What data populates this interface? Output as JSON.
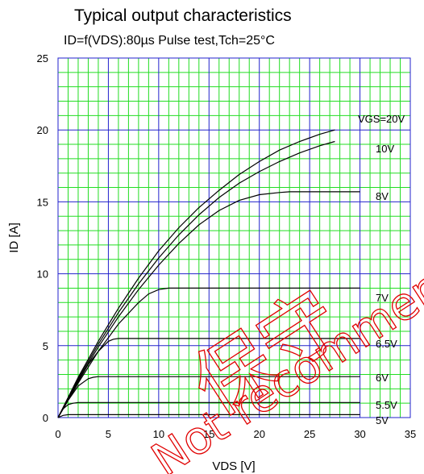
{
  "chart_data": {
    "type": "line",
    "title": "Typical output characteristics",
    "subtitle": "ID=f(VDS):80µs Pulse test,Tch=25°C",
    "xlabel": "VDS [V]",
    "ylabel": "ID [A]",
    "xlim": [
      0,
      35
    ],
    "ylim": [
      0,
      25
    ],
    "x_ticks": [
      "0",
      "5",
      "10",
      "15",
      "20",
      "25",
      "30",
      "35"
    ],
    "y_ticks": [
      "0",
      "5",
      "10",
      "15",
      "20",
      "25"
    ],
    "grid": true,
    "colors": {
      "major_grid": "#2222cc",
      "minor_grid": "#22dd22",
      "curve": "#000000",
      "watermark": "#e00000"
    },
    "series": [
      {
        "name": "VGS=20V",
        "x": [
          0,
          2,
          4,
          6,
          8,
          10,
          12,
          14,
          16,
          18,
          20,
          22,
          24,
          26,
          27.5
        ],
        "y": [
          0,
          2.8,
          5.3,
          7.6,
          9.7,
          11.6,
          13.2,
          14.6,
          15.8,
          16.9,
          17.8,
          18.6,
          19.2,
          19.7,
          20.0
        ]
      },
      {
        "name": "10V",
        "x": [
          0,
          2,
          4,
          6,
          8,
          10,
          12,
          14,
          16,
          18,
          20,
          22,
          24,
          26,
          27.5
        ],
        "y": [
          0,
          2.7,
          5.1,
          7.3,
          9.3,
          11.1,
          12.7,
          14.1,
          15.3,
          16.3,
          17.1,
          17.8,
          18.4,
          18.9,
          19.2
        ]
      },
      {
        "name": "8V",
        "x": [
          0,
          2,
          4,
          6,
          8,
          10,
          12,
          14,
          16,
          18,
          20,
          22,
          23,
          25,
          30
        ],
        "y": [
          0,
          2.6,
          4.9,
          7.0,
          8.9,
          10.6,
          12.1,
          13.4,
          14.4,
          15.1,
          15.5,
          15.65,
          15.7,
          15.7,
          15.7
        ]
      },
      {
        "name": "7V",
        "x": [
          0,
          2,
          4,
          6,
          8,
          9,
          10,
          11,
          30
        ],
        "y": [
          0,
          2.4,
          4.6,
          6.5,
          8.0,
          8.6,
          8.9,
          9.0,
          9.0
        ]
      },
      {
        "name": "6.5V",
        "x": [
          0,
          1,
          2,
          3,
          4,
          5,
          5.5,
          6,
          30
        ],
        "y": [
          0,
          1.3,
          2.5,
          3.7,
          4.6,
          5.3,
          5.45,
          5.5,
          5.5
        ]
      },
      {
        "name": "6V",
        "x": [
          0,
          1,
          2,
          3,
          3.5,
          4,
          30
        ],
        "y": [
          0,
          1.2,
          2.2,
          2.7,
          2.8,
          2.85,
          2.85
        ]
      },
      {
        "name": "5.5V",
        "x": [
          0,
          0.5,
          1,
          1.5,
          2,
          30
        ],
        "y": [
          0,
          0.6,
          0.9,
          1.0,
          1.05,
          1.05
        ]
      },
      {
        "name": "5V",
        "x": [
          0,
          0.5,
          1,
          30
        ],
        "y": [
          0,
          0.15,
          0.2,
          0.2
        ]
      }
    ],
    "watermark": {
      "line1": "保守",
      "line2": "Not recommended"
    }
  }
}
